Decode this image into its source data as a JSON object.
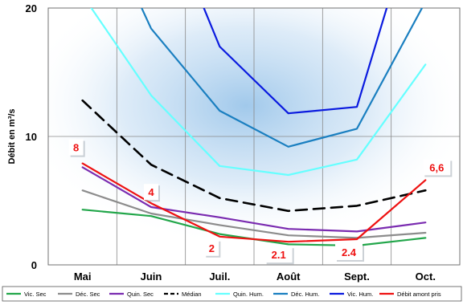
{
  "chart_data": {
    "type": "line",
    "title": "",
    "ylabel": "Débit en m³/s",
    "xlabel": "",
    "categories": [
      "Mai",
      "Juin",
      "Juil.",
      "Août",
      "Sept.",
      "Oct."
    ],
    "y_ticks": [
      "0",
      "10",
      "20"
    ],
    "ylim": [
      0,
      20
    ],
    "grid": true,
    "legend_position": "bottom",
    "series": [
      {
        "name": "Vic. Sec",
        "color": "#22a64a",
        "dash": "solid",
        "values": [
          4.3,
          3.8,
          2.4,
          1.6,
          1.5,
          2.1
        ]
      },
      {
        "name": "Déc. Sec",
        "color": "#8c8c8c",
        "dash": "solid",
        "values": [
          5.8,
          4.0,
          3.1,
          2.3,
          2.1,
          2.5
        ]
      },
      {
        "name": "Quin. Sec",
        "color": "#7a2bb0",
        "dash": "solid",
        "values": [
          7.6,
          4.5,
          3.7,
          2.8,
          2.6,
          3.3
        ]
      },
      {
        "name": "Médian",
        "color": "#000000",
        "dash": "dash",
        "values": [
          12.8,
          7.8,
          5.2,
          4.2,
          4.6,
          5.8
        ]
      },
      {
        "name": "Quin. Hum.",
        "color": "#66ffff",
        "dash": "solid",
        "values": [
          21.0,
          13.2,
          7.7,
          7.0,
          8.2,
          15.6
        ]
      },
      {
        "name": "Déc. Hum.",
        "color": "#1a7fc0",
        "dash": "solid",
        "values": [
          null,
          18.4,
          12.0,
          9.2,
          10.6,
          20.5
        ]
      },
      {
        "name": "Vic. Hum.",
        "color": "#0a1adf",
        "dash": "solid",
        "values": [
          null,
          null,
          17.0,
          11.8,
          12.3,
          null
        ]
      },
      {
        "name": "Débit amont pris",
        "color": "#ee1111",
        "dash": "solid",
        "values": [
          7.9,
          4.8,
          2.2,
          1.8,
          2.0,
          6.6
        ]
      }
    ],
    "annotations": [
      "8",
      "4",
      "2",
      "2.1",
      "2.4",
      "6,6"
    ]
  }
}
